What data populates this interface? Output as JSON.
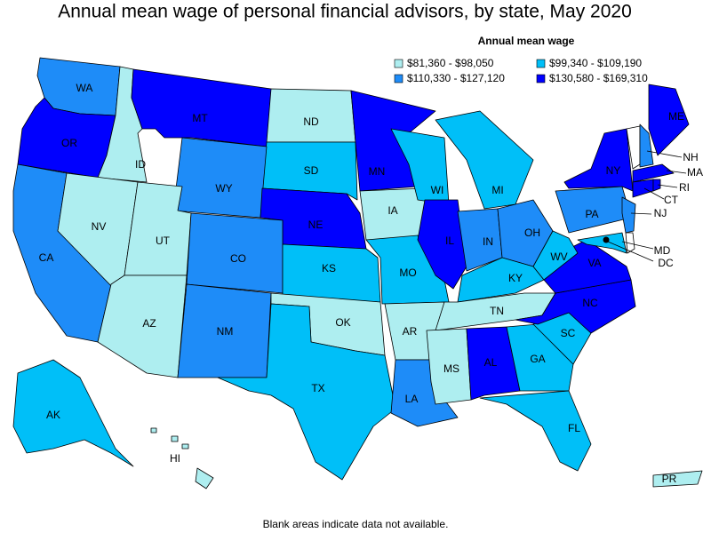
{
  "title": "Annual mean wage of personal financial advisors, by state, May 2020",
  "legend": {
    "title": "Annual mean wage",
    "bins": [
      {
        "label": "$81,360 - $98,050",
        "color": "#aeeef0"
      },
      {
        "label": "$99,340 - $109,190",
        "color": "#00bff8"
      },
      {
        "label": "$110,330 - $127,120",
        "color": "#1e8cf8"
      },
      {
        "label": "$130,580 - $169,310",
        "color": "#0000ff"
      }
    ]
  },
  "states": [
    {
      "label": "WA",
      "bin": 2
    },
    {
      "label": "OR",
      "bin": 3
    },
    {
      "label": "ID",
      "bin": 0
    },
    {
      "label": "MT",
      "bin": 3
    },
    {
      "label": "ND",
      "bin": 0
    },
    {
      "label": "SD",
      "bin": 1
    },
    {
      "label": "WY",
      "bin": 2
    },
    {
      "label": "NE",
      "bin": 3
    },
    {
      "label": "CA",
      "bin": 2
    },
    {
      "label": "NV",
      "bin": 0
    },
    {
      "label": "UT",
      "bin": 0
    },
    {
      "label": "AZ",
      "bin": 0
    },
    {
      "label": "CO",
      "bin": 2
    },
    {
      "label": "NM",
      "bin": 2
    },
    {
      "label": "KS",
      "bin": 1
    },
    {
      "label": "OK",
      "bin": 0
    },
    {
      "label": "TX",
      "bin": 1
    },
    {
      "label": "MN",
      "bin": 3
    },
    {
      "label": "IA",
      "bin": 0
    },
    {
      "label": "MO",
      "bin": 1
    },
    {
      "label": "AR",
      "bin": 0
    },
    {
      "label": "LA",
      "bin": 2
    },
    {
      "label": "WI",
      "bin": 1
    },
    {
      "label": "IL",
      "bin": 3
    },
    {
      "label": "MI",
      "bin": 1
    },
    {
      "label": "IN",
      "bin": 2
    },
    {
      "label": "OH",
      "bin": 2
    },
    {
      "label": "KY",
      "bin": 1
    },
    {
      "label": "TN",
      "bin": 0
    },
    {
      "label": "MS",
      "bin": 0
    },
    {
      "label": "AL",
      "bin": 3
    },
    {
      "label": "GA",
      "bin": 1
    },
    {
      "label": "FL",
      "bin": 1
    },
    {
      "label": "SC",
      "bin": 1
    },
    {
      "label": "NC",
      "bin": 3
    },
    {
      "label": "VA",
      "bin": 3
    },
    {
      "label": "WV",
      "bin": 1
    },
    {
      "label": "PA",
      "bin": 2
    },
    {
      "label": "NY",
      "bin": 3
    },
    {
      "label": "MD",
      "bin": 1
    },
    {
      "label": "NJ",
      "bin": 2
    },
    {
      "label": "NH",
      "bin": 2
    },
    {
      "label": "ME",
      "bin": 3
    },
    {
      "label": "MA",
      "bin": 3
    },
    {
      "label": "CT",
      "bin": 3
    },
    {
      "label": "RI",
      "bin": 3
    },
    {
      "label": "AK",
      "bin": 1
    },
    {
      "label": "HI",
      "bin": 0
    },
    {
      "label": "PR",
      "bin": 0
    },
    {
      "label": "DC",
      "bin": 3
    }
  ],
  "footnote": "Blank areas indicate data not available."
}
